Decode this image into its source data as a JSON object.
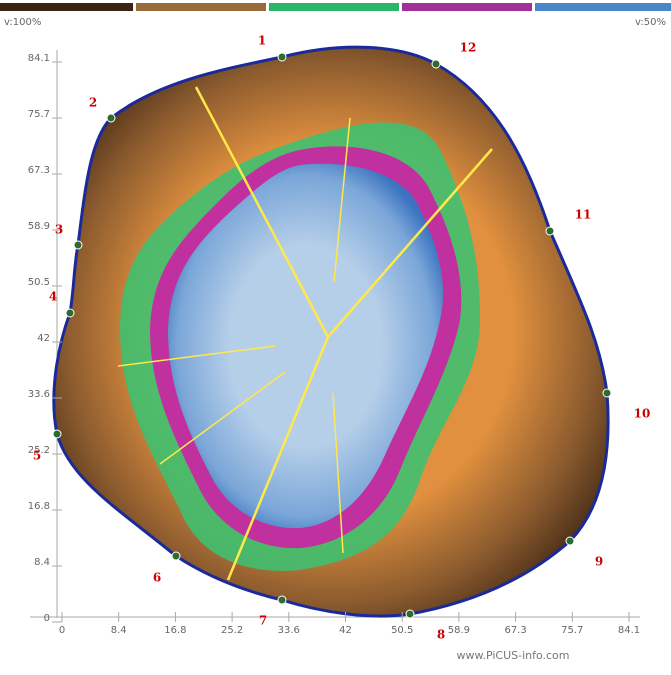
{
  "legend": {
    "left_label": "v:100%",
    "right_label": "v:50%"
  },
  "x_axis": {
    "ticks": [
      "0",
      "8.4",
      "16.8",
      "25.2",
      "33.6",
      "42",
      "50.5",
      "58.9",
      "67.3",
      "75.7",
      "84.1"
    ]
  },
  "y_axis": {
    "ticks": [
      "0",
      "8.4",
      "16.8",
      "25.2",
      "33.6",
      "42",
      "50.5",
      "58.9",
      "67.3",
      "75.7",
      "84.1"
    ]
  },
  "sensors": [
    "1",
    "2",
    "3",
    "4",
    "5",
    "6",
    "7",
    "8",
    "9",
    "10",
    "11",
    "12"
  ],
  "footer": "www.PiCUS-info.com"
}
